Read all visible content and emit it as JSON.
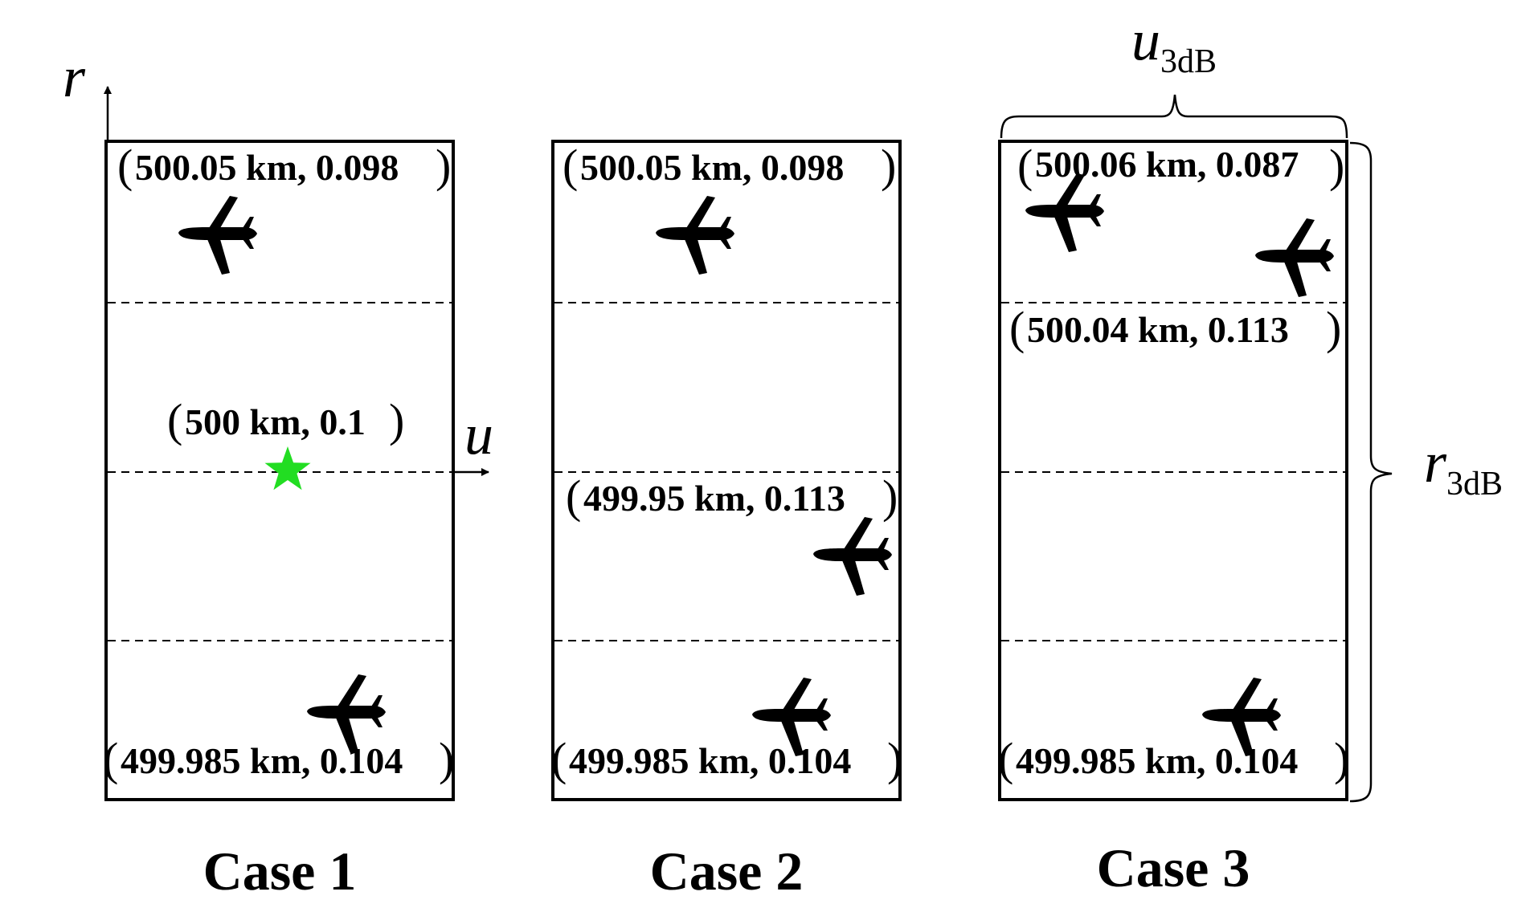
{
  "figure": {
    "axis_r": "r",
    "axis_u": "u",
    "u3db": {
      "main": "u",
      "sub": "3dB"
    },
    "r3db": {
      "main": "r",
      "sub": "3dB"
    },
    "star_color": "#22dd22",
    "panels": [
      {
        "case_label": "Case 1",
        "labels": {
          "top": "500.05 km, 0.098",
          "center": "500 km, 0.1",
          "bottom": "499.985 km, 0.104"
        },
        "icons": [
          "airplane-icon",
          "airplane-icon",
          "star-icon"
        ]
      },
      {
        "case_label": "Case 2",
        "labels": {
          "top": "500.05 km, 0.098",
          "middle": "499.95 km, 0.113",
          "bottom": "499.985 km, 0.104"
        },
        "icons": [
          "airplane-icon",
          "airplane-icon",
          "airplane-icon"
        ]
      },
      {
        "case_label": "Case 3",
        "labels": {
          "top": "500.06 km, 0.087",
          "upper": "500.04 km, 0.113",
          "bottom": "499.985 km, 0.104"
        },
        "icons": [
          "airplane-icon",
          "airplane-icon",
          "airplane-icon"
        ]
      }
    ]
  }
}
